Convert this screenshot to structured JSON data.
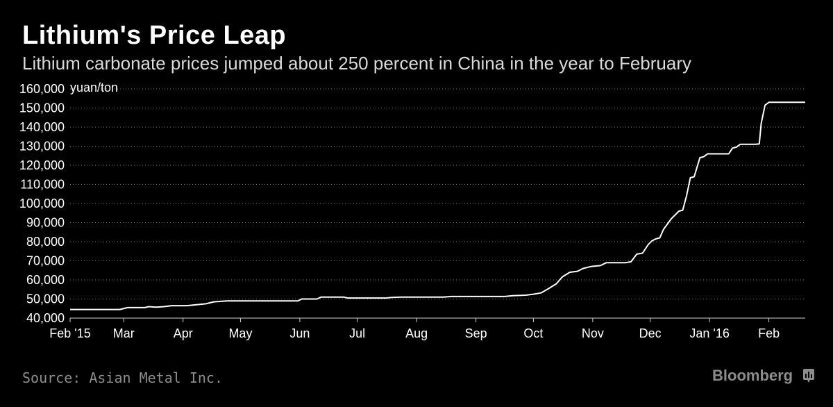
{
  "header": {
    "title": "Lithium's Price Leap",
    "subtitle": "Lithium carbonate prices jumped about 250 percent in China in the year to February"
  },
  "footer": {
    "source": "Source: Asian Metal Inc.",
    "brand": "Bloomberg",
    "brand_icon": "bloomberg-terminal-icon"
  },
  "colors": {
    "background": "#000000",
    "line": "#ffffff",
    "grid": "#7a7a7a",
    "muted": "#8c8c8c"
  },
  "chart_data": {
    "type": "line",
    "title": "Lithium's Price Leap",
    "subtitle": "Lithium carbonate prices jumped about 250 percent in China in the year to February",
    "ylabel": "yuan/ton",
    "xlabel": "",
    "ylim": [
      40000,
      160000
    ],
    "yticks": [
      "40,000",
      "50,000",
      "60,000",
      "70,000",
      "80,000",
      "90,000",
      "100,000",
      "110,000",
      "120,000",
      "130,000",
      "140,000",
      "150,000",
      "160,000"
    ],
    "ytick_values": [
      40000,
      50000,
      60000,
      70000,
      80000,
      90000,
      100000,
      110000,
      120000,
      130000,
      140000,
      150000,
      160000
    ],
    "xlim": [
      "2015-02-01",
      "2016-02-20"
    ],
    "xticks": [
      {
        "label": "Feb '15",
        "date": "2015-02-01"
      },
      {
        "label": "Mar",
        "date": "2015-03-01"
      },
      {
        "label": "Apr",
        "date": "2015-04-01"
      },
      {
        "label": "May",
        "date": "2015-05-01"
      },
      {
        "label": "Jun",
        "date": "2015-06-01"
      },
      {
        "label": "Jul",
        "date": "2015-07-01"
      },
      {
        "label": "Aug",
        "date": "2015-08-01"
      },
      {
        "label": "Sep",
        "date": "2015-09-01"
      },
      {
        "label": "Oct",
        "date": "2015-10-01"
      },
      {
        "label": "Nov",
        "date": "2015-11-01"
      },
      {
        "label": "Dec",
        "date": "2015-12-01"
      },
      {
        "label": "Jan '16",
        "date": "2016-01-01"
      },
      {
        "label": "Feb",
        "date": "2016-02-01"
      }
    ],
    "grid": true,
    "series": [
      {
        "points": [
          [
            "2015-02-01",
            44500
          ],
          [
            "2015-02-27",
            44500
          ],
          [
            "2015-03-03",
            45500
          ],
          [
            "2015-03-12",
            45500
          ],
          [
            "2015-03-14",
            46000
          ],
          [
            "2015-03-18",
            45700
          ],
          [
            "2015-03-22",
            46000
          ],
          [
            "2015-03-26",
            46500
          ],
          [
            "2015-04-03",
            46500
          ],
          [
            "2015-04-08",
            47000
          ],
          [
            "2015-04-13",
            47500
          ],
          [
            "2015-04-17",
            48500
          ],
          [
            "2015-04-24",
            49000
          ],
          [
            "2015-05-10",
            49000
          ],
          [
            "2015-05-31",
            49000
          ],
          [
            "2015-06-01",
            49500
          ],
          [
            "2015-06-02",
            50000
          ],
          [
            "2015-06-10",
            50000
          ],
          [
            "2015-06-12",
            51000
          ],
          [
            "2015-06-24",
            51000
          ],
          [
            "2015-06-26",
            50500
          ],
          [
            "2015-07-16",
            50500
          ],
          [
            "2015-07-19",
            50800
          ],
          [
            "2015-07-24",
            51000
          ],
          [
            "2015-08-15",
            51000
          ],
          [
            "2015-08-19",
            51300
          ],
          [
            "2015-09-01",
            51300
          ],
          [
            "2015-09-16",
            51300
          ],
          [
            "2015-09-20",
            51700
          ],
          [
            "2015-09-27",
            52000
          ],
          [
            "2015-10-01",
            52500
          ],
          [
            "2015-10-05",
            53200
          ],
          [
            "2015-10-09",
            55500
          ],
          [
            "2015-10-13",
            58000
          ],
          [
            "2015-10-16",
            61500
          ],
          [
            "2015-10-20",
            64000
          ],
          [
            "2015-10-24",
            64500
          ],
          [
            "2015-10-27",
            66000
          ],
          [
            "2015-10-31",
            67000
          ],
          [
            "2015-11-05",
            67500
          ],
          [
            "2015-11-08",
            69000
          ],
          [
            "2015-11-18",
            69000
          ],
          [
            "2015-11-21",
            69500
          ],
          [
            "2015-11-24",
            73500
          ],
          [
            "2015-11-27",
            74000
          ],
          [
            "2015-11-30",
            78500
          ],
          [
            "2015-12-02",
            80500
          ],
          [
            "2015-12-04",
            81500
          ],
          [
            "2015-12-06",
            82000
          ],
          [
            "2015-12-08",
            86500
          ],
          [
            "2015-12-12",
            92000
          ],
          [
            "2015-12-16",
            96000
          ],
          [
            "2015-12-18",
            96500
          ],
          [
            "2015-12-20",
            104000
          ],
          [
            "2015-12-22",
            113500
          ],
          [
            "2015-12-24",
            114000
          ],
          [
            "2015-12-27",
            124000
          ],
          [
            "2015-12-29",
            124500
          ],
          [
            "2015-12-31",
            126000
          ],
          [
            "2016-01-11",
            126000
          ],
          [
            "2016-01-13",
            129000
          ],
          [
            "2016-01-15",
            129500
          ],
          [
            "2016-01-17",
            131000
          ],
          [
            "2016-01-25",
            131000
          ],
          [
            "2016-01-27",
            131200
          ],
          [
            "2016-01-28",
            142000
          ],
          [
            "2016-01-30",
            151500
          ],
          [
            "2016-02-01",
            153000
          ],
          [
            "2016-02-20",
            153000
          ]
        ]
      }
    ]
  }
}
